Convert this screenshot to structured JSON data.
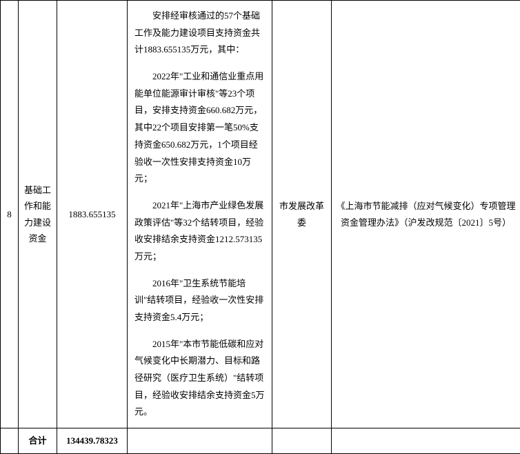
{
  "row": {
    "index": "8",
    "category": "基础工作和能力建设资金",
    "amount": "1883.655135",
    "department": "市发展改革委",
    "regulation": "《上海市节能减排（应对气候变化）专项管理资金管理办法》（沪发改规范〔2021〕5号）",
    "desc_p1": "安排经审核通过的57个基础工作及能力建设项目支持资金共计1883.655135万元，其中：",
    "desc_p2": "2022年\"工业和通信业重点用能单位能源审计审核\"等23个项目，安排支持资金660.682万元，其中22个项目安排第一笔50%支持资金650.682万元，1个项目经验收一次性安排支持资金10万元；",
    "desc_p3": "2021年\"上海市产业绿色发展政策评估\"等32个结转项目，经验收安排结余支持资金1212.573135万元；",
    "desc_p4": "2016年\"卫生系统节能培训\"结转项目，经验收一次性安排支持资金5.4万元；",
    "desc_p5": "2015年\"本市节能低碳和应对气候变化中长期潜力、目标和路径研究（医疗卫生系统）\"结转项目，经验收安排结余支持资金5万元。"
  },
  "total": {
    "label": "合计",
    "amount": "134439.78323"
  }
}
